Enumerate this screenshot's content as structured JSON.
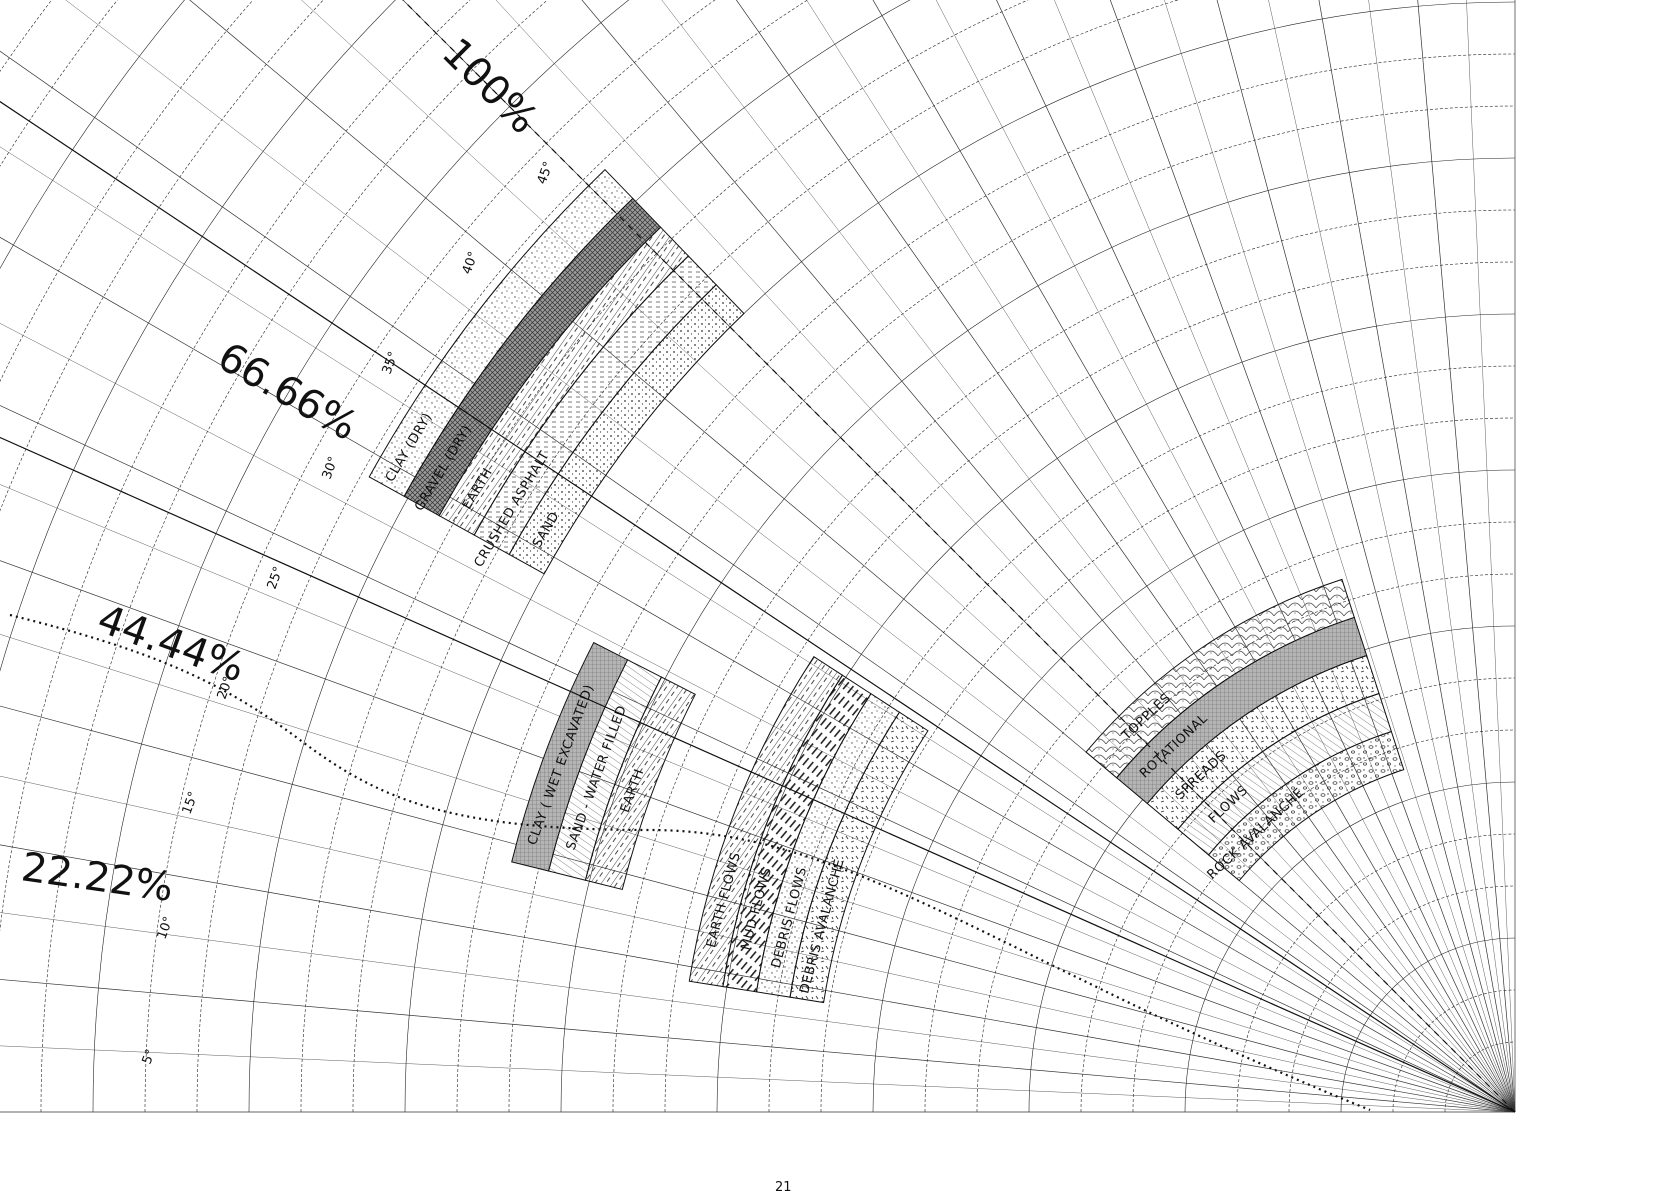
{
  "slope_percent_labels": [
    "100%",
    "66.66%",
    "44.44%",
    "22.22%"
  ],
  "slope_degree_labels": [
    "45°",
    "40°",
    "35°",
    "30°",
    "25°",
    "20°",
    "15°",
    "10°",
    "5°"
  ],
  "material_bands": [
    {
      "label": "SAND",
      "pattern": "dots"
    },
    {
      "label": "CRUSHED ASPHALT",
      "pattern": "dashes"
    },
    {
      "label": "EARTH",
      "pattern": "hatch"
    },
    {
      "label": "GRAVEL (DRY)",
      "pattern": "crosshatch"
    },
    {
      "label": "CLAY (DRY)",
      "pattern": "stipple"
    },
    {
      "label": "EARTH",
      "pattern": "hatch"
    },
    {
      "label": "SAND - WATER FILLED",
      "pattern": "lines"
    },
    {
      "label": "CLAY ( WET EXCAVATED)",
      "pattern": "grid"
    }
  ],
  "landslide_bands": [
    {
      "label": "DEBRIS AVALANCHE",
      "pattern": "flecks"
    },
    {
      "label": "DEBRIS FLOWS",
      "pattern": "stipple"
    },
    {
      "label": "MUD FLOWS",
      "pattern": "streaks"
    },
    {
      "label": "EARTH FLOWS",
      "pattern": "hatch"
    }
  ],
  "rock_bands": [
    {
      "label": "ROCK AVALANCHE",
      "pattern": "pebbles"
    },
    {
      "label": "FLOWS",
      "pattern": "lines"
    },
    {
      "label": "SPREADS",
      "pattern": "flecks"
    },
    {
      "label": "ROTATIONAL",
      "pattern": "grid"
    },
    {
      "label": "TOPPLES",
      "pattern": "scales"
    }
  ],
  "partial_bottom_label": "21"
}
